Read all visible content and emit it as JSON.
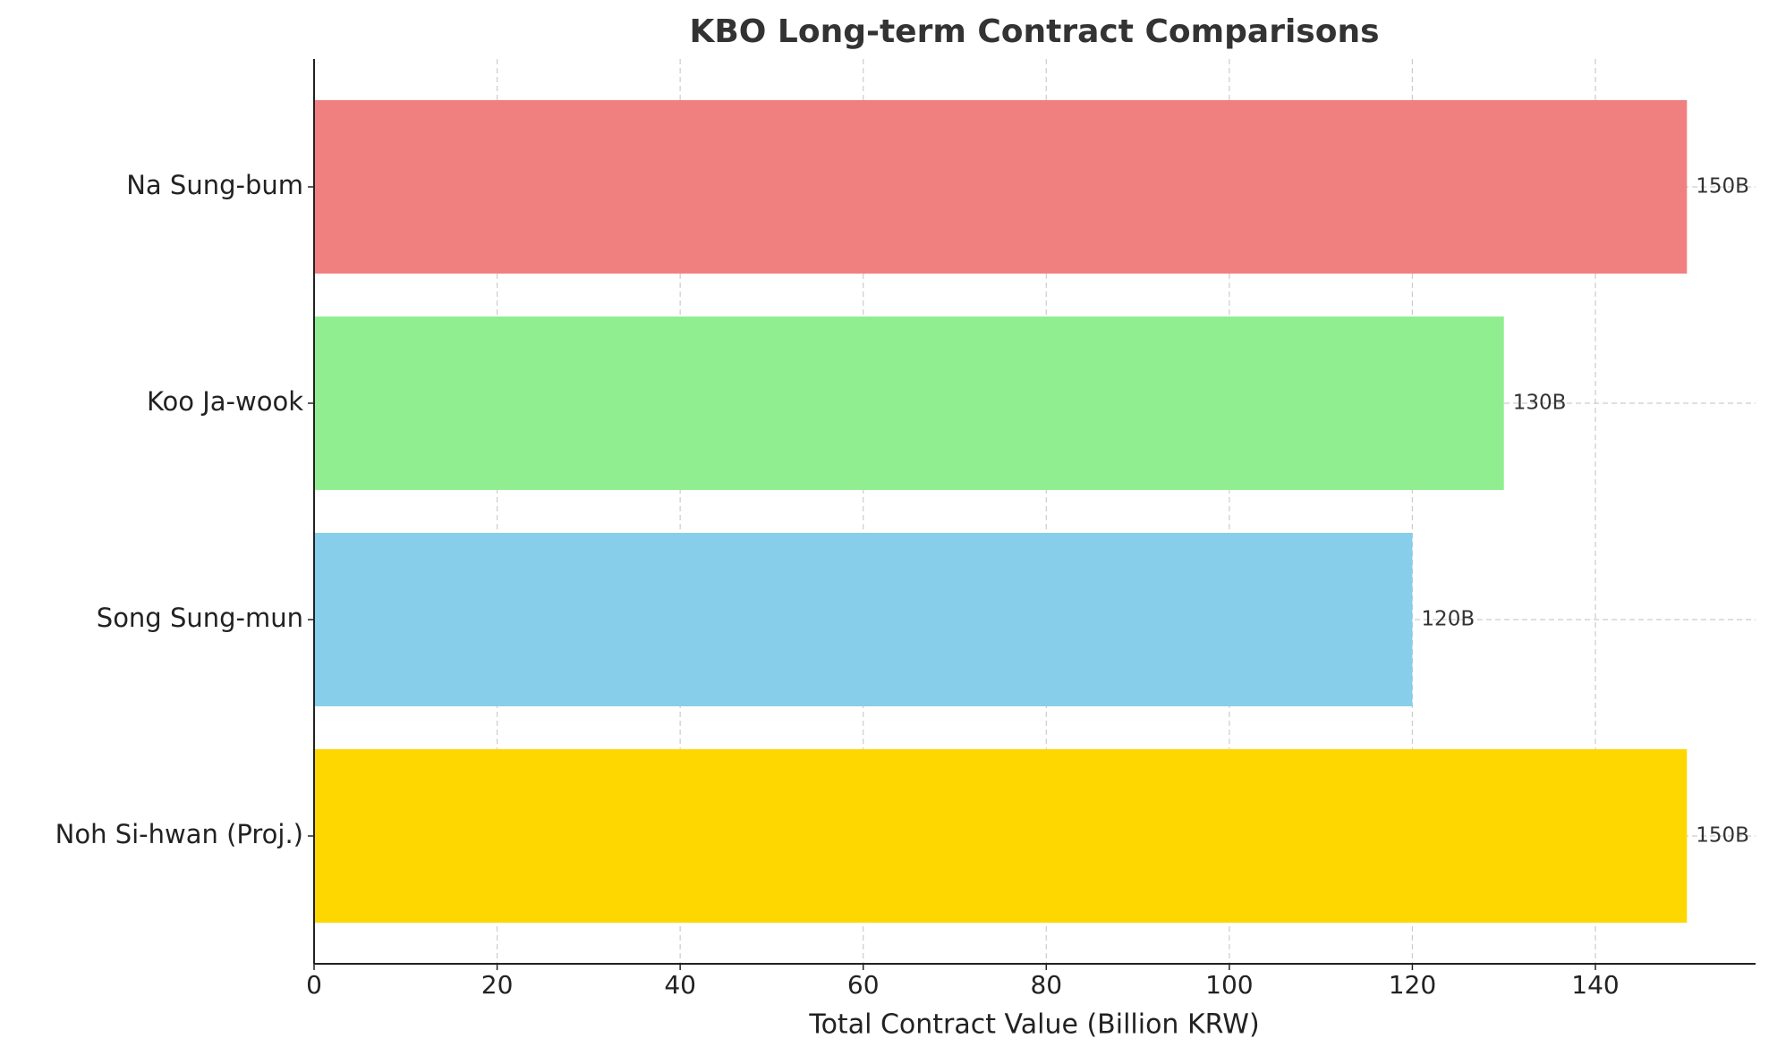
{
  "chart_data": {
    "type": "bar",
    "orientation": "horizontal",
    "title": "KBO Long-term Contract Comparisons",
    "x_label": "Total Contract Value (Billion KRW)",
    "categories": [
      "Na Sung-bum",
      "Koo Ja-wook",
      "Song Sung-mun",
      "Noh Si-hwan (Proj.)"
    ],
    "values": [
      150,
      130,
      120,
      150
    ],
    "value_labels": [
      "150B",
      "130B",
      "120B",
      "150B"
    ],
    "colors": [
      "#f08080",
      "#90ee90",
      "#87ceeb",
      "#ffd700"
    ],
    "xlim": [
      0,
      157.5
    ],
    "xticks": [
      0,
      20,
      40,
      60,
      80,
      100,
      120,
      140
    ],
    "grid": true
  }
}
